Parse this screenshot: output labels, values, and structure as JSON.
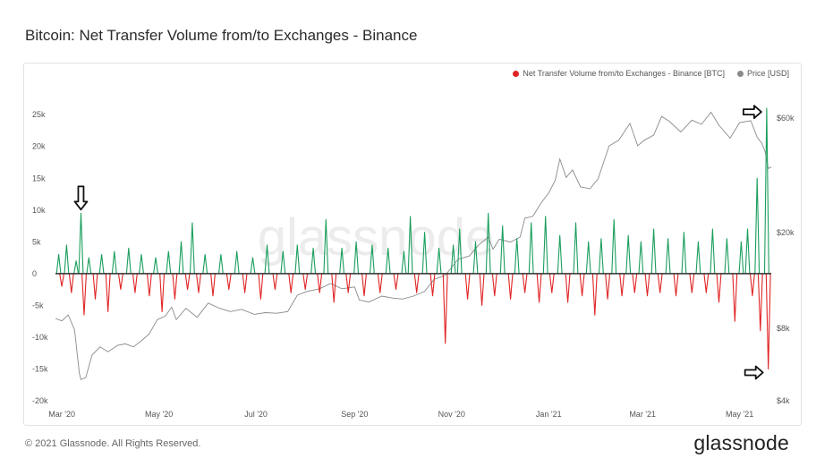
{
  "header": {
    "title": "Bitcoin: Net Transfer Volume from/to Exchanges - Binance"
  },
  "footer": {
    "copyright": "© 2021 Glassnode. All Rights Reserved.",
    "brand": "glassnode"
  },
  "watermark": "glassnode",
  "chart_data": {
    "type": "bar",
    "x_range": [
      "2020-02-26",
      "2021-05-22"
    ],
    "xticks": [
      {
        "date": "2020-03-01",
        "label": "Mar '20"
      },
      {
        "date": "2020-05-01",
        "label": "May '20"
      },
      {
        "date": "2020-07-01",
        "label": "Jul '20"
      },
      {
        "date": "2020-09-01",
        "label": "Sep '20"
      },
      {
        "date": "2020-11-01",
        "label": "Nov '20"
      },
      {
        "date": "2021-01-01",
        "label": "Jan '21"
      },
      {
        "date": "2021-03-01",
        "label": "Mar '21"
      },
      {
        "date": "2021-05-01",
        "label": "May '21"
      }
    ],
    "y_left": {
      "ylim": [
        -20000,
        27000
      ],
      "ticks": [
        25000,
        20000,
        15000,
        10000,
        5000,
        0,
        -5000,
        -10000,
        -15000,
        -20000
      ],
      "tick_labels": [
        "25k",
        "20k",
        "15k",
        "10k",
        "5k",
        "0",
        "-5k",
        "-10k",
        "-15k",
        "-20k"
      ]
    },
    "y_right": {
      "scale": "log",
      "ylim": [
        4000,
        70000
      ],
      "ticks": [
        60000,
        20000,
        8000,
        4000
      ],
      "tick_labels": [
        "$60k",
        "$20k",
        "$8k",
        "$4k"
      ]
    },
    "legend_placement": "top-right",
    "grid": false,
    "colors": {
      "positive": "#1a9e5c",
      "negative": "#e02424",
      "price": "#8a8a8a"
    },
    "series": [
      {
        "name": "Net Transfer Volume from/to Exchanges - Binance [BTC]",
        "kind": "bar",
        "note": "daily net flow, positive = inflow (green), negative = outflow (red)",
        "points": [
          [
            "2020-02-28",
            3000
          ],
          [
            "2020-03-01",
            -2000
          ],
          [
            "2020-03-04",
            4500
          ],
          [
            "2020-03-07",
            -3000
          ],
          [
            "2020-03-10",
            2000
          ],
          [
            "2020-03-13",
            9500
          ],
          [
            "2020-03-15",
            -6500
          ],
          [
            "2020-03-18",
            2500
          ],
          [
            "2020-03-22",
            -4000
          ],
          [
            "2020-03-26",
            3000
          ],
          [
            "2020-03-30",
            -6000
          ],
          [
            "2020-04-03",
            3500
          ],
          [
            "2020-04-07",
            -2500
          ],
          [
            "2020-04-12",
            4000
          ],
          [
            "2020-04-16",
            -3000
          ],
          [
            "2020-04-20",
            3000
          ],
          [
            "2020-04-25",
            -3500
          ],
          [
            "2020-04-29",
            2500
          ],
          [
            "2020-05-03",
            -6000
          ],
          [
            "2020-05-07",
            3500
          ],
          [
            "2020-05-11",
            -4000
          ],
          [
            "2020-05-15",
            5000
          ],
          [
            "2020-05-19",
            -2500
          ],
          [
            "2020-05-22",
            8000
          ],
          [
            "2020-05-26",
            -3000
          ],
          [
            "2020-05-30",
            3000
          ],
          [
            "2020-06-04",
            -3500
          ],
          [
            "2020-06-09",
            3000
          ],
          [
            "2020-06-14",
            -2500
          ],
          [
            "2020-06-19",
            3500
          ],
          [
            "2020-06-24",
            -3000
          ],
          [
            "2020-06-29",
            2500
          ],
          [
            "2020-07-04",
            -4000
          ],
          [
            "2020-07-08",
            4500
          ],
          [
            "2020-07-13",
            -2500
          ],
          [
            "2020-07-18",
            3500
          ],
          [
            "2020-07-23",
            -3000
          ],
          [
            "2020-07-27",
            4500
          ],
          [
            "2020-08-01",
            -2500
          ],
          [
            "2020-08-06",
            4000
          ],
          [
            "2020-08-10",
            -3000
          ],
          [
            "2020-08-14",
            8500
          ],
          [
            "2020-08-19",
            -4500
          ],
          [
            "2020-08-24",
            4000
          ],
          [
            "2020-08-28",
            -3000
          ],
          [
            "2020-09-02",
            5000
          ],
          [
            "2020-09-07",
            -3500
          ],
          [
            "2020-09-12",
            4500
          ],
          [
            "2020-09-17",
            -3000
          ],
          [
            "2020-09-22",
            4000
          ],
          [
            "2020-09-27",
            -2500
          ],
          [
            "2020-10-02",
            3500
          ],
          [
            "2020-10-06",
            9000
          ],
          [
            "2020-10-10",
            -3000
          ],
          [
            "2020-10-15",
            6500
          ],
          [
            "2020-10-20",
            -3500
          ],
          [
            "2020-10-24",
            4000
          ],
          [
            "2020-10-28",
            -11000
          ],
          [
            "2020-11-02",
            4500
          ],
          [
            "2020-11-06",
            7000
          ],
          [
            "2020-11-11",
            -4000
          ],
          [
            "2020-11-16",
            5000
          ],
          [
            "2020-11-20",
            -5000
          ],
          [
            "2020-11-24",
            9500
          ],
          [
            "2020-11-28",
            -3500
          ],
          [
            "2020-12-03",
            7500
          ],
          [
            "2020-12-08",
            -4000
          ],
          [
            "2020-12-12",
            5500
          ],
          [
            "2020-12-17",
            -3000
          ],
          [
            "2020-12-21",
            8000
          ],
          [
            "2020-12-26",
            -4500
          ],
          [
            "2020-12-30",
            9000
          ],
          [
            "2021-01-03",
            -3000
          ],
          [
            "2021-01-08",
            6000
          ],
          [
            "2021-01-13",
            -4500
          ],
          [
            "2021-01-18",
            8000
          ],
          [
            "2021-01-22",
            -3500
          ],
          [
            "2021-01-26",
            5000
          ],
          [
            "2021-01-30",
            -6500
          ],
          [
            "2021-02-03",
            5500
          ],
          [
            "2021-02-07",
            -4000
          ],
          [
            "2021-02-11",
            8500
          ],
          [
            "2021-02-16",
            -3500
          ],
          [
            "2021-02-20",
            6000
          ],
          [
            "2021-02-24",
            -3000
          ],
          [
            "2021-02-28",
            5000
          ],
          [
            "2021-03-04",
            -3500
          ],
          [
            "2021-03-08",
            7000
          ],
          [
            "2021-03-12",
            -3000
          ],
          [
            "2021-03-17",
            5500
          ],
          [
            "2021-03-22",
            -3500
          ],
          [
            "2021-03-27",
            6500
          ],
          [
            "2021-04-01",
            -3000
          ],
          [
            "2021-04-05",
            5000
          ],
          [
            "2021-04-10",
            -3000
          ],
          [
            "2021-04-14",
            7000
          ],
          [
            "2021-04-18",
            -4500
          ],
          [
            "2021-04-23",
            5500
          ],
          [
            "2021-04-28",
            -7500
          ],
          [
            "2021-05-02",
            5000
          ],
          [
            "2021-05-06",
            7000
          ],
          [
            "2021-05-09",
            -3500
          ],
          [
            "2021-05-12",
            15000
          ],
          [
            "2021-05-14",
            -9000
          ],
          [
            "2021-05-18",
            26000
          ],
          [
            "2021-05-19",
            -15000
          ]
        ]
      },
      {
        "name": "Price [USD]",
        "kind": "line",
        "axis": "right",
        "points": [
          [
            "2020-02-26",
            8800
          ],
          [
            "2020-03-01",
            8600
          ],
          [
            "2020-03-05",
            9100
          ],
          [
            "2020-03-09",
            7900
          ],
          [
            "2020-03-12",
            5200
          ],
          [
            "2020-03-13",
            4900
          ],
          [
            "2020-03-16",
            5000
          ],
          [
            "2020-03-20",
            6200
          ],
          [
            "2020-03-25",
            6700
          ],
          [
            "2020-03-30",
            6400
          ],
          [
            "2020-04-05",
            6800
          ],
          [
            "2020-04-10",
            6900
          ],
          [
            "2020-04-15",
            6700
          ],
          [
            "2020-04-20",
            7100
          ],
          [
            "2020-04-25",
            7600
          ],
          [
            "2020-04-30",
            8700
          ],
          [
            "2020-05-05",
            9000
          ],
          [
            "2020-05-09",
            9800
          ],
          [
            "2020-05-12",
            8700
          ],
          [
            "2020-05-18",
            9700
          ],
          [
            "2020-05-25",
            8900
          ],
          [
            "2020-06-01",
            10200
          ],
          [
            "2020-06-08",
            9700
          ],
          [
            "2020-06-15",
            9400
          ],
          [
            "2020-06-22",
            9600
          ],
          [
            "2020-06-30",
            9150
          ],
          [
            "2020-07-07",
            9300
          ],
          [
            "2020-07-14",
            9250
          ],
          [
            "2020-07-21",
            9400
          ],
          [
            "2020-07-27",
            11000
          ],
          [
            "2020-08-02",
            11400
          ],
          [
            "2020-08-10",
            11700
          ],
          [
            "2020-08-17",
            12300
          ],
          [
            "2020-08-24",
            11700
          ],
          [
            "2020-09-01",
            11900
          ],
          [
            "2020-09-04",
            10500
          ],
          [
            "2020-09-10",
            10300
          ],
          [
            "2020-09-18",
            10900
          ],
          [
            "2020-09-25",
            10700
          ],
          [
            "2020-10-01",
            10600
          ],
          [
            "2020-10-08",
            10900
          ],
          [
            "2020-10-15",
            11400
          ],
          [
            "2020-10-21",
            12800
          ],
          [
            "2020-10-28",
            13300
          ],
          [
            "2020-11-05",
            15500
          ],
          [
            "2020-11-12",
            16000
          ],
          [
            "2020-11-18",
            17800
          ],
          [
            "2020-11-24",
            19200
          ],
          [
            "2020-11-27",
            17100
          ],
          [
            "2020-12-01",
            18800
          ],
          [
            "2020-12-08",
            18300
          ],
          [
            "2020-12-14",
            19200
          ],
          [
            "2020-12-17",
            23000
          ],
          [
            "2020-12-22",
            23400
          ],
          [
            "2020-12-27",
            26500
          ],
          [
            "2021-01-01",
            29300
          ],
          [
            "2021-01-05",
            33000
          ],
          [
            "2021-01-08",
            40500
          ],
          [
            "2021-01-12",
            34000
          ],
          [
            "2021-01-16",
            36500
          ],
          [
            "2021-01-21",
            31000
          ],
          [
            "2021-01-27",
            30500
          ],
          [
            "2021-02-01",
            33500
          ],
          [
            "2021-02-08",
            46000
          ],
          [
            "2021-02-14",
            48500
          ],
          [
            "2021-02-21",
            57000
          ],
          [
            "2021-02-26",
            46000
          ],
          [
            "2021-03-02",
            48500
          ],
          [
            "2021-03-08",
            51000
          ],
          [
            "2021-03-13",
            61000
          ],
          [
            "2021-03-18",
            58000
          ],
          [
            "2021-03-25",
            52500
          ],
          [
            "2021-04-01",
            58800
          ],
          [
            "2021-04-07",
            56500
          ],
          [
            "2021-04-13",
            63500
          ],
          [
            "2021-04-18",
            56000
          ],
          [
            "2021-04-25",
            49500
          ],
          [
            "2021-05-01",
            57500
          ],
          [
            "2021-05-08",
            58500
          ],
          [
            "2021-05-12",
            50000
          ],
          [
            "2021-05-15",
            47000
          ],
          [
            "2021-05-17",
            43500
          ],
          [
            "2021-05-19",
            37000
          ],
          [
            "2021-05-21",
            37500
          ]
        ]
      }
    ],
    "annotations": [
      {
        "kind": "arrow-down",
        "date": "2020-03-13",
        "value": 9500
      },
      {
        "kind": "arrow-right",
        "date": "2021-05-18",
        "value": 26000
      },
      {
        "kind": "arrow-right",
        "date": "2021-05-19",
        "value": -15000
      }
    ]
  }
}
